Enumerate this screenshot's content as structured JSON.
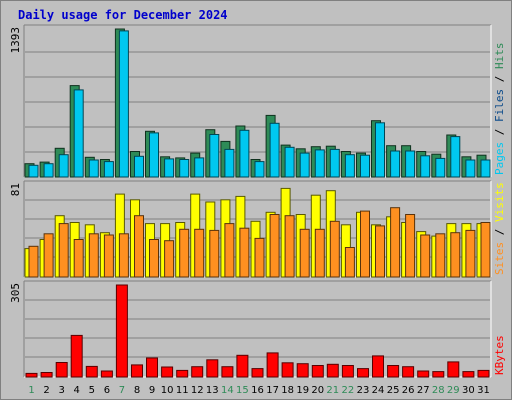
{
  "chart_data": {
    "type": "bar",
    "title": "Daily usage for December 2024",
    "categories": [
      "1",
      "2",
      "3",
      "4",
      "5",
      "6",
      "7",
      "8",
      "9",
      "10",
      "11",
      "12",
      "13",
      "14",
      "15",
      "16",
      "17",
      "18",
      "19",
      "20",
      "21",
      "22",
      "23",
      "24",
      "25",
      "26",
      "27",
      "28",
      "29",
      "30",
      "31"
    ],
    "weekend_days": [
      "1",
      "7",
      "14",
      "15",
      "21",
      "22",
      "28",
      "29"
    ],
    "panels": [
      {
        "id": "hits-files-pages",
        "ylabel_max": "1393",
        "legend": [
          "Pages",
          "Files",
          "Hits"
        ],
        "ymax": 1393,
        "series": [
          {
            "name": "Hits",
            "color": "#2e8b57",
            "values": [
              125,
              140,
              270,
              860,
              185,
              165,
              1393,
              240,
              430,
              190,
              180,
              225,
              445,
              335,
              480,
              165,
              580,
              300,
              265,
              285,
              290,
              240,
              225,
              530,
              295,
              295,
              240,
              215,
              395,
              190,
              205
            ]
          },
          {
            "name": "Files",
            "color": "#00c8f0",
            "values": [
              110,
              125,
              210,
              820,
              160,
              145,
              1375,
              195,
              415,
              170,
              165,
              180,
              400,
              260,
              440,
              145,
              505,
              280,
              225,
              255,
              260,
              210,
              205,
              510,
              245,
              245,
              200,
              175,
              380,
              160,
              160
            ]
          },
          {
            "name": "Pages",
            "color": "#0a4a8a",
            "values": [
              0,
              0,
              0,
              0,
              0,
              0,
              0,
              0,
              0,
              0,
              0,
              0,
              0,
              0,
              0,
              0,
              0,
              0,
              0,
              0,
              0,
              0,
              0,
              0,
              0,
              0,
              0,
              0,
              0,
              0,
              0
            ]
          }
        ]
      },
      {
        "id": "visits-sites",
        "ylabel_max": "81",
        "legend": [
          "Sites",
          "Visits"
        ],
        "ymax": 81,
        "series": [
          {
            "name": "Visits",
            "color": "#ffff00",
            "values": [
              25,
              33,
              54,
              48,
              46,
              39,
              73,
              68,
              47,
              47,
              48,
              73,
              66,
              68,
              71,
              49,
              57,
              78,
              55,
              72,
              76,
              46,
              57,
              46,
              53,
              48,
              40,
              36,
              47,
              47,
              47
            ]
          },
          {
            "name": "Sites",
            "color": "#ff9020",
            "values": [
              27,
              38,
              47,
              33,
              38,
              37,
              38,
              54,
              33,
              32,
              42,
              42,
              41,
              47,
              43,
              34,
              55,
              54,
              42,
              42,
              49,
              26,
              58,
              45,
              61,
              55,
              37,
              38,
              39,
              41,
              48
            ]
          }
        ]
      },
      {
        "id": "kbytes",
        "ylabel_max": "305",
        "legend": [
          "KBytes"
        ],
        "ymax": 305,
        "series": [
          {
            "name": "KBytes",
            "color": "#ff0000",
            "values": [
              12,
              15,
              48,
              138,
              35,
              20,
              305,
              40,
              63,
              33,
              22,
              34,
              57,
              34,
              72,
              28,
              80,
              47,
              44,
              38,
              42,
              38,
              28,
              70,
              38,
              34,
              20,
              18,
              50,
              18,
              22
            ]
          }
        ]
      }
    ]
  }
}
